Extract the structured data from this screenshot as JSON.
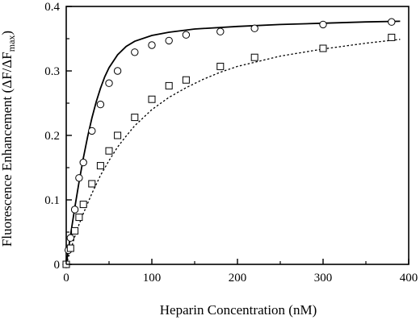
{
  "chart_data": {
    "type": "scatter",
    "xlabel": "Heparin Concentration (nM)",
    "ylabel": {
      "main": "Fluorescence Enhancement (ΔF/ΔF",
      "subscript": "max",
      "close": ")"
    },
    "xlim": [
      0,
      400
    ],
    "ylim": [
      0,
      0.4
    ],
    "x_ticks": [
      0,
      100,
      200,
      300,
      400
    ],
    "y_ticks": [
      0,
      0.1,
      0.2,
      0.3,
      0.4
    ],
    "grid": false,
    "legend": "none",
    "series": [
      {
        "marker": "circle",
        "line_style": "solid",
        "points": [
          [
            0,
            0.0
          ],
          [
            2.5,
            0.022
          ],
          [
            5,
            0.041
          ],
          [
            10,
            0.085
          ],
          [
            15,
            0.134
          ],
          [
            20,
            0.158
          ],
          [
            30,
            0.207
          ],
          [
            40,
            0.248
          ],
          [
            50,
            0.281
          ],
          [
            60,
            0.3
          ],
          [
            80,
            0.329
          ],
          [
            100,
            0.34
          ],
          [
            120,
            0.347
          ],
          [
            140,
            0.356
          ],
          [
            180,
            0.361
          ],
          [
            220,
            0.366
          ],
          [
            300,
            0.372
          ],
          [
            380,
            0.376
          ]
        ],
        "fit": [
          [
            0,
            0.0
          ],
          [
            5,
            0.045
          ],
          [
            10,
            0.088
          ],
          [
            15,
            0.128
          ],
          [
            20,
            0.165
          ],
          [
            25,
            0.198
          ],
          [
            30,
            0.227
          ],
          [
            35,
            0.252
          ],
          [
            40,
            0.273
          ],
          [
            45,
            0.291
          ],
          [
            50,
            0.305
          ],
          [
            60,
            0.325
          ],
          [
            70,
            0.338
          ],
          [
            80,
            0.346
          ],
          [
            100,
            0.355
          ],
          [
            120,
            0.36
          ],
          [
            150,
            0.365
          ],
          [
            200,
            0.369
          ],
          [
            250,
            0.372
          ],
          [
            300,
            0.374
          ],
          [
            350,
            0.376
          ],
          [
            390,
            0.377
          ]
        ]
      },
      {
        "marker": "square",
        "line_style": "dotted",
        "points": [
          [
            0,
            0.0
          ],
          [
            5,
            0.025
          ],
          [
            10,
            0.052
          ],
          [
            15,
            0.073
          ],
          [
            20,
            0.093
          ],
          [
            30,
            0.125
          ],
          [
            40,
            0.153
          ],
          [
            50,
            0.176
          ],
          [
            60,
            0.2
          ],
          [
            80,
            0.228
          ],
          [
            100,
            0.256
          ],
          [
            120,
            0.277
          ],
          [
            140,
            0.286
          ],
          [
            180,
            0.307
          ],
          [
            220,
            0.321
          ],
          [
            300,
            0.335
          ],
          [
            380,
            0.352
          ]
        ],
        "fit": [
          [
            0,
            0.0
          ],
          [
            5,
            0.022
          ],
          [
            10,
            0.043
          ],
          [
            15,
            0.062
          ],
          [
            20,
            0.079
          ],
          [
            30,
            0.11
          ],
          [
            40,
            0.138
          ],
          [
            50,
            0.161
          ],
          [
            60,
            0.182
          ],
          [
            70,
            0.199
          ],
          [
            80,
            0.215
          ],
          [
            100,
            0.24
          ],
          [
            120,
            0.259
          ],
          [
            140,
            0.274
          ],
          [
            160,
            0.287
          ],
          [
            180,
            0.298
          ],
          [
            200,
            0.307
          ],
          [
            250,
            0.323
          ],
          [
            300,
            0.334
          ],
          [
            350,
            0.343
          ],
          [
            390,
            0.349
          ]
        ]
      }
    ]
  }
}
